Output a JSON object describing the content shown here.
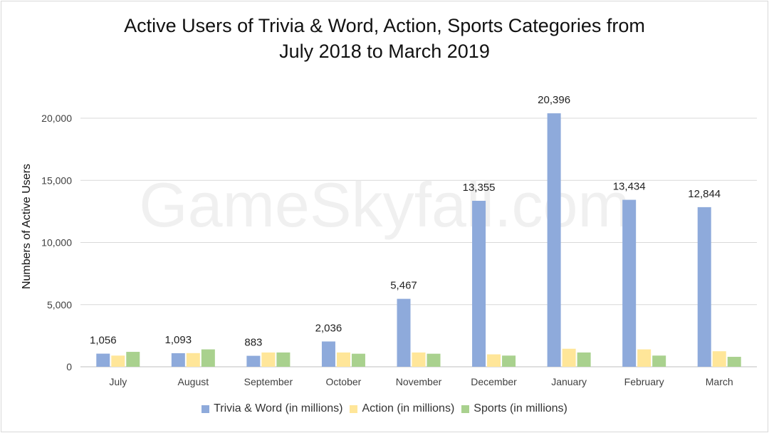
{
  "chart_data": {
    "type": "bar",
    "title_lines": [
      "Active Users of Trivia & Word, Action, Sports Categories from",
      "July 2018 to March 2019"
    ],
    "xlabel": "",
    "ylabel": "Numbers of Active Users",
    "ylim": [
      0,
      20000
    ],
    "yticks": [
      0,
      5000,
      10000,
      15000,
      20000
    ],
    "ytick_labels": [
      "0",
      "5,000",
      "10,000",
      "15,000",
      "20,000"
    ],
    "grid": true,
    "legend_position": "bottom",
    "categories": [
      "July",
      "August",
      "September",
      "October",
      "November",
      "December",
      "January",
      "February",
      "March"
    ],
    "series": [
      {
        "name": "Trivia & Word (in millions)",
        "color": "#8eaadb",
        "values": [
          1056,
          1093,
          883,
          2036,
          5467,
          13355,
          20396,
          13434,
          12844
        ],
        "labels": [
          "1,056",
          "1,093",
          "883",
          "2,036",
          "5,467",
          "13,355",
          "20,396",
          "13,434",
          "12,844"
        ]
      },
      {
        "name": "Action (in millions)",
        "color": "#ffe699",
        "values": [
          900,
          1100,
          1150,
          1150,
          1150,
          1000,
          1450,
          1400,
          1250
        ]
      },
      {
        "name": "Sports (in millions)",
        "color": "#a9d18e",
        "values": [
          1200,
          1400,
          1150,
          1050,
          1050,
          900,
          1150,
          900,
          800
        ]
      }
    ],
    "watermark": "GameSkyfall.com"
  }
}
